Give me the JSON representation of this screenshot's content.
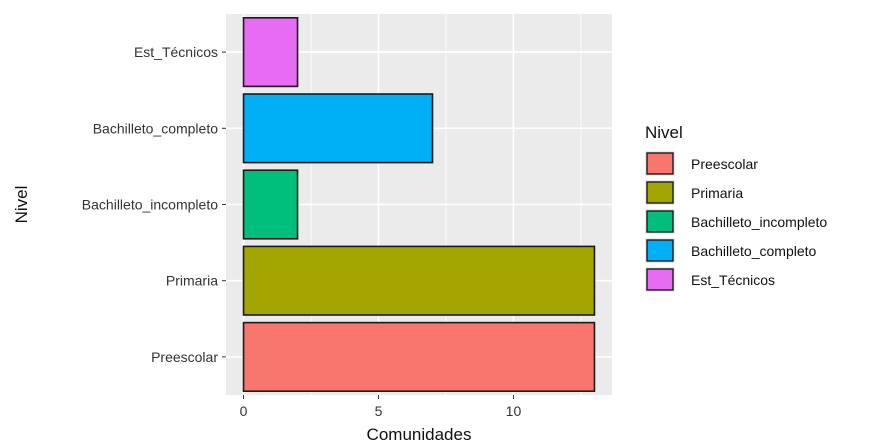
{
  "chart_data": {
    "type": "bar",
    "orientation": "horizontal",
    "categories": [
      "Preescolar",
      "Primaria",
      "Bachilleto_incompleto",
      "Bachilleto_completo",
      "Est_Técnicos"
    ],
    "values": [
      13,
      13,
      2,
      7,
      2
    ],
    "colors": [
      "#F8766D",
      "#A3A500",
      "#00BF7D",
      "#00B0F6",
      "#E76BF3"
    ],
    "xlabel": "Comunidades",
    "ylabel": "Nivel",
    "xlim": [
      -0.65,
      13.65
    ],
    "xticks": [
      0,
      5,
      10
    ],
    "grid": true,
    "legend": {
      "title": "Nivel",
      "position": "right",
      "entries": [
        "Preescolar",
        "Primaria",
        "Bachilleto_incompleto",
        "Bachilleto_completo",
        "Est_Técnicos"
      ]
    }
  }
}
